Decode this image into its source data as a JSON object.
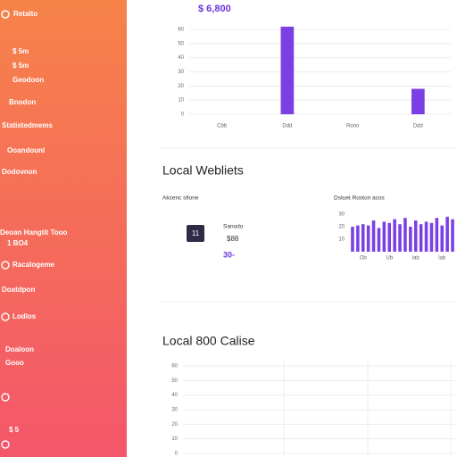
{
  "sidebar": {
    "brand": "Retalto",
    "items": [
      "$ 5m",
      "$ 5m",
      "Geodoon",
      "Bnodon",
      "Statistedmems",
      "Ooandounl",
      "Dodovnon",
      "Deoan Hangtit Tooo",
      "1 BO4",
      "Racalogeme",
      "Doatdpon",
      "Lodlos",
      "Doaloon",
      "Gooo",
      "$ 5"
    ]
  },
  "header": {
    "amount": "$ 6,800"
  },
  "top_chart": {
    "type": "bar",
    "categories": [
      "Cbb",
      "Ddd",
      "Rooo",
      "Ddd"
    ],
    "values": [
      0,
      62,
      0,
      18
    ],
    "color": "#7b3fe4",
    "ylim": [
      0,
      60
    ],
    "yticks": [
      0,
      10,
      20,
      30,
      40,
      50,
      60
    ],
    "grid": true
  },
  "section1": {
    "title": "Local Webliets",
    "stat": {
      "label": "Akcenc sfione",
      "badge": "11",
      "name": "Sanodo",
      "value": "$88",
      "change": "30-"
    },
    "mini_chart": {
      "type": "bar",
      "title": "Dstuet Roston acos",
      "xtick_labels": [
        "Ob",
        "Ub",
        "lab",
        "lab"
      ],
      "values": [
        20,
        21,
        22,
        21,
        25,
        19,
        24,
        23,
        26,
        22,
        27,
        20,
        25,
        22,
        24,
        23,
        27,
        21,
        28,
        26
      ],
      "color": "#7b3fe4",
      "ylim": [
        0,
        30
      ],
      "yticks": [
        10,
        20,
        30
      ]
    }
  },
  "section2": {
    "title": "Local 800 Calise",
    "chart": {
      "type": "bar",
      "values": [],
      "ylim": [
        0,
        60
      ],
      "yticks": [
        0,
        10,
        20,
        30,
        40,
        50,
        60
      ],
      "grid": true
    }
  }
}
